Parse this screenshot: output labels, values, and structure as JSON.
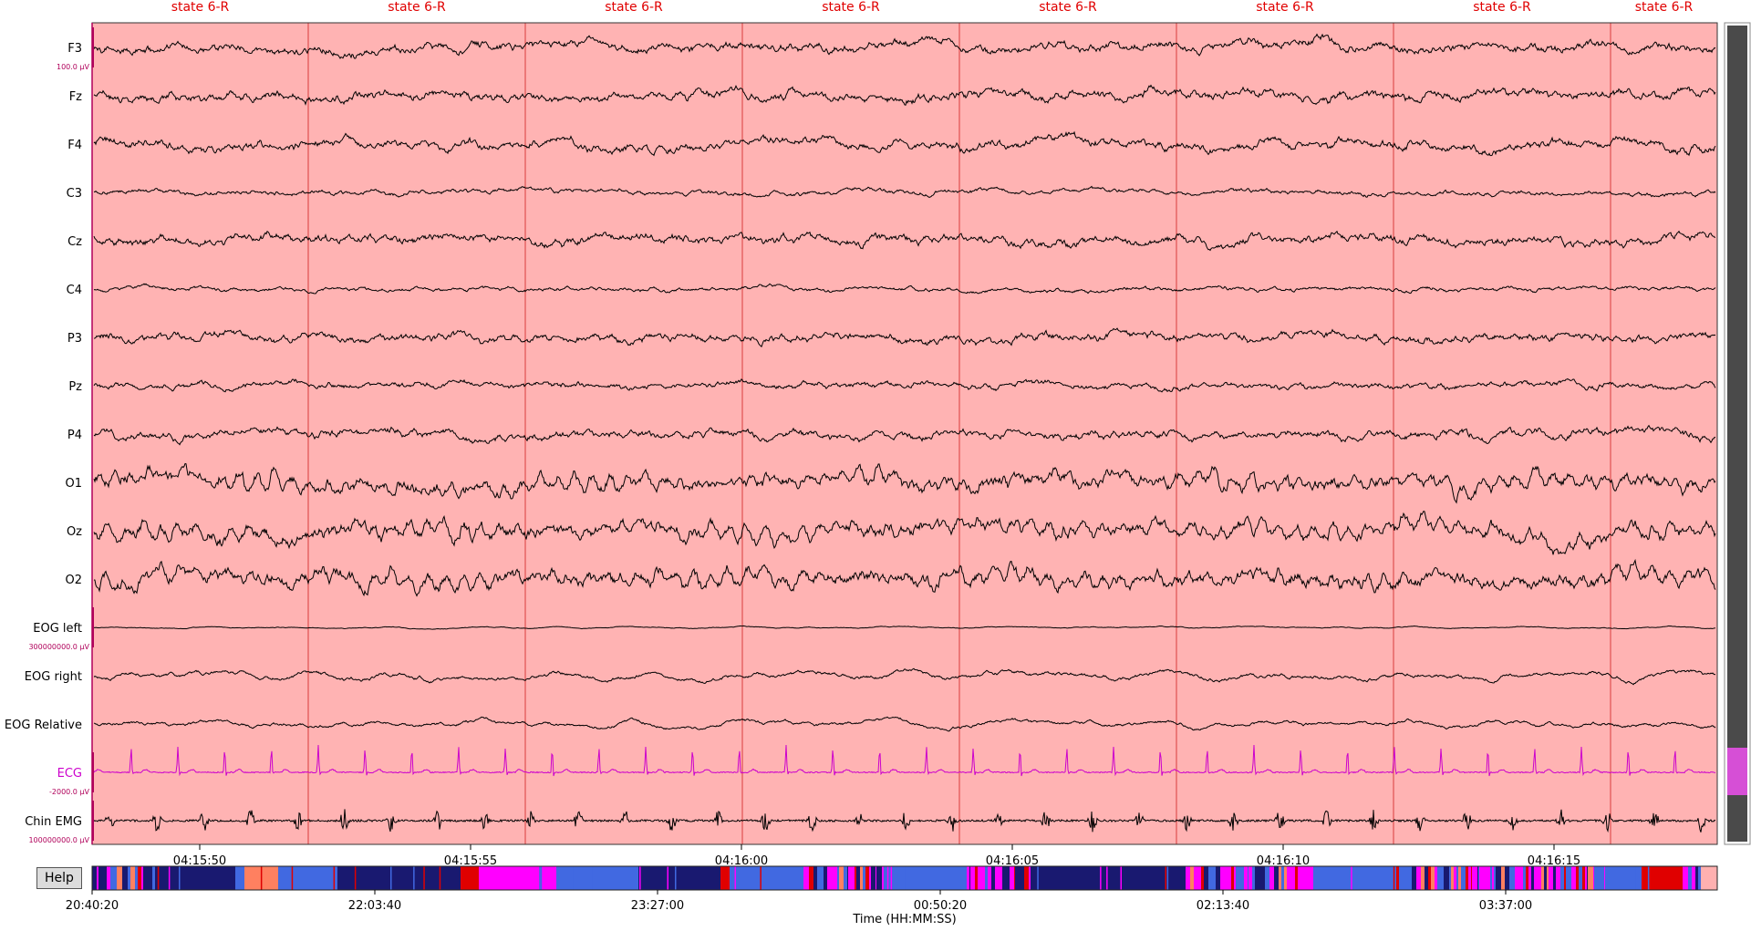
{
  "window": {
    "title": ""
  },
  "epoch": {
    "labels": [
      "state 6-R",
      "state 6-R",
      "state 6-R",
      "state 6-R",
      "state 6-R",
      "state 6-R",
      "state 6-R",
      "state 6-R"
    ],
    "color": "#ffb3b3",
    "boundary_color": "#e05050",
    "label_color": "#e00000"
  },
  "channels": [
    {
      "name": "F3",
      "color": "#000000",
      "scale_label": "100.0 µV",
      "amp": 0.9,
      "wave": "eeg"
    },
    {
      "name": "Fz",
      "color": "#000000",
      "amp": 0.9,
      "wave": "eeg"
    },
    {
      "name": "F4",
      "color": "#000000",
      "amp": 0.9,
      "wave": "eeg"
    },
    {
      "name": "C3",
      "color": "#000000",
      "amp": 0.45,
      "wave": "eeg"
    },
    {
      "name": "Cz",
      "color": "#000000",
      "amp": 0.9,
      "wave": "eeg"
    },
    {
      "name": "C4",
      "color": "#000000",
      "amp": 0.4,
      "wave": "eeg"
    },
    {
      "name": "P3",
      "color": "#000000",
      "amp": 0.8,
      "wave": "eeg"
    },
    {
      "name": "Pz",
      "color": "#000000",
      "amp": 0.6,
      "wave": "eeg"
    },
    {
      "name": "P4",
      "color": "#000000",
      "amp": 0.8,
      "wave": "eeg"
    },
    {
      "name": "O1",
      "color": "#000000",
      "amp": 1.5,
      "wave": "alpha"
    },
    {
      "name": "Oz",
      "color": "#000000",
      "amp": 1.5,
      "wave": "alpha"
    },
    {
      "name": "O2",
      "color": "#000000",
      "amp": 1.5,
      "wave": "alpha"
    },
    {
      "name": "EOG left",
      "color": "#000000",
      "scale_label": "300000000.0 µV",
      "amp": 0.15,
      "wave": "eog"
    },
    {
      "name": "EOG right",
      "color": "#000000",
      "amp": 0.7,
      "wave": "eog"
    },
    {
      "name": "EOG Relative",
      "color": "#000000",
      "amp": 0.6,
      "wave": "eog"
    },
    {
      "name": "ECG",
      "color": "#cc00cc",
      "scale_label": "-2000.0 µV",
      "amp": 1.0,
      "wave": "ecg"
    },
    {
      "name": "Chin EMG",
      "color": "#000000",
      "scale_label": "100000000.0 µV",
      "amp": 1.0,
      "wave": "emg"
    }
  ],
  "time_axis": {
    "ticks": [
      "04:15:50",
      "04:15:55",
      "04:16:00",
      "04:16:05",
      "04:16:10",
      "04:16:15"
    ]
  },
  "help_button": {
    "label": "Help"
  },
  "hypnogram": {
    "ticks": [
      "20:40:20",
      "22:03:40",
      "23:27:00",
      "00:50:20",
      "02:13:40",
      "03:37:00"
    ],
    "xlabel": "Time (HH:MM:SS)",
    "colors": {
      "wake": "#ff00ff",
      "n1": "#4169e1",
      "n2": "#191970",
      "rem": "#e00000",
      "arousal": "#ff8060",
      "end": "#ffb0b0"
    }
  },
  "scrollbar": {
    "thumb_color": "#d64fd6",
    "track_color": "#4a4a4a"
  }
}
